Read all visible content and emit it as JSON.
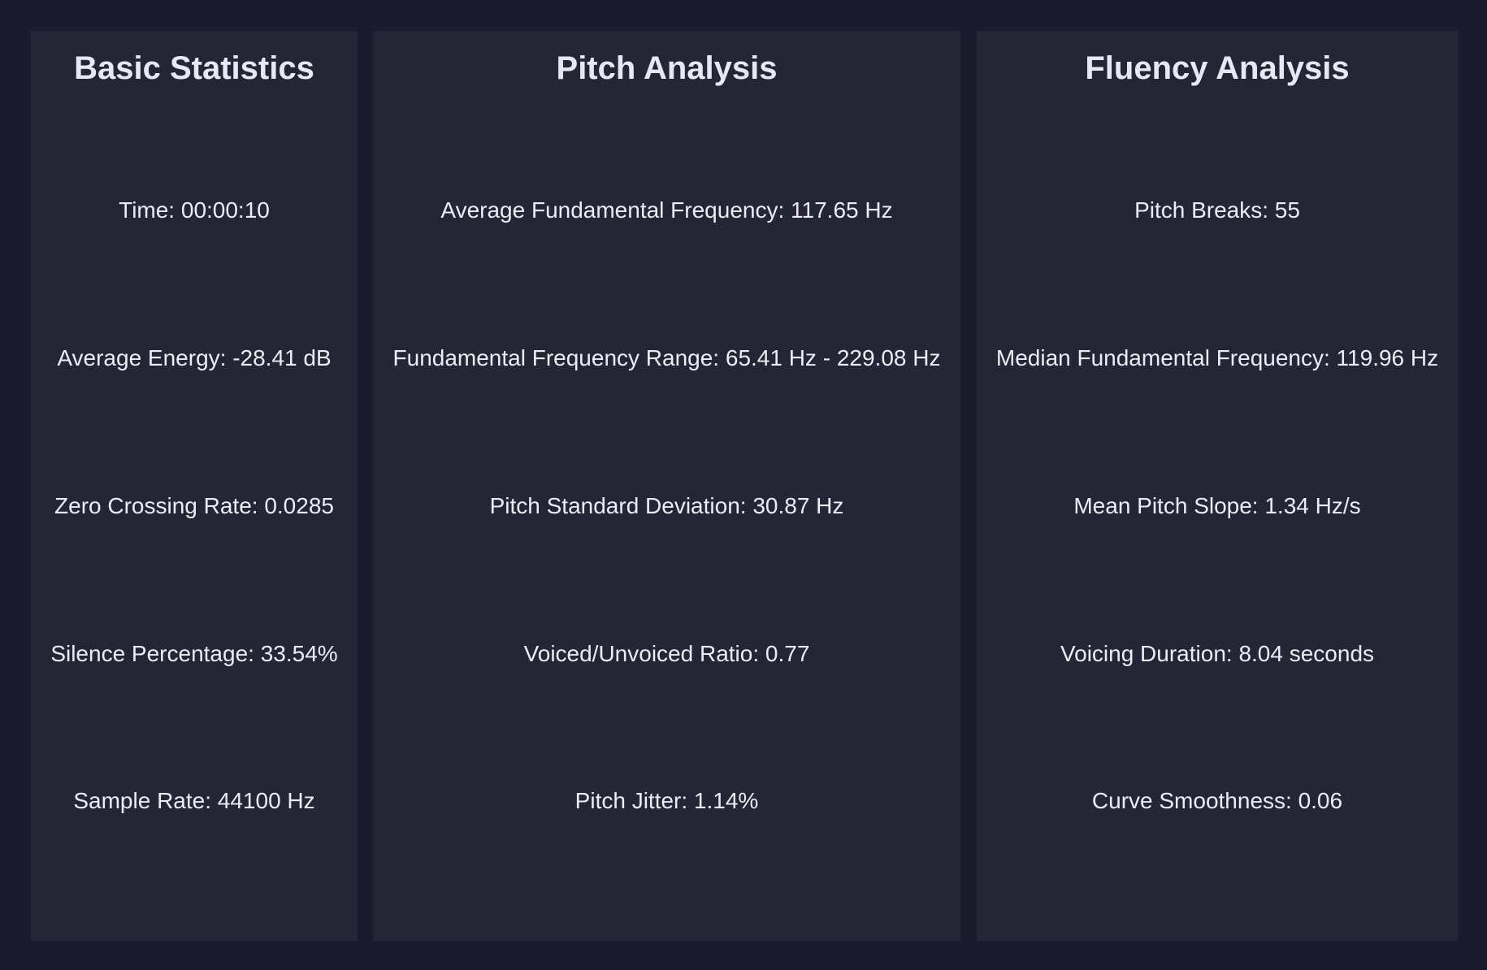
{
  "panels": {
    "basic": {
      "title": "Basic Statistics",
      "stats": [
        "Time: 00:00:10",
        "Average Energy: -28.41 dB",
        "Zero Crossing Rate: 0.0285",
        "Silence Percentage: 33.54%",
        "Sample Rate: 44100 Hz"
      ]
    },
    "pitch": {
      "title": "Pitch Analysis",
      "stats": [
        "Average Fundamental Frequency: 117.65 Hz",
        "Fundamental Frequency Range: 65.41 Hz - 229.08 Hz",
        "Pitch Standard Deviation: 30.87 Hz",
        "Voiced/Unvoiced Ratio: 0.77",
        "Pitch Jitter: 1.14%"
      ]
    },
    "fluency": {
      "title": "Fluency Analysis",
      "stats": [
        "Pitch Breaks: 55",
        "Median Fundamental Frequency: 119.96 Hz",
        "Mean Pitch Slope: 1.34 Hz/s",
        "Voicing Duration: 8.04 seconds",
        "Curve Smoothness: 0.06"
      ]
    }
  },
  "colors": {
    "background": "#1a1b2e",
    "panel": "#252536",
    "text": "#ececf3"
  }
}
